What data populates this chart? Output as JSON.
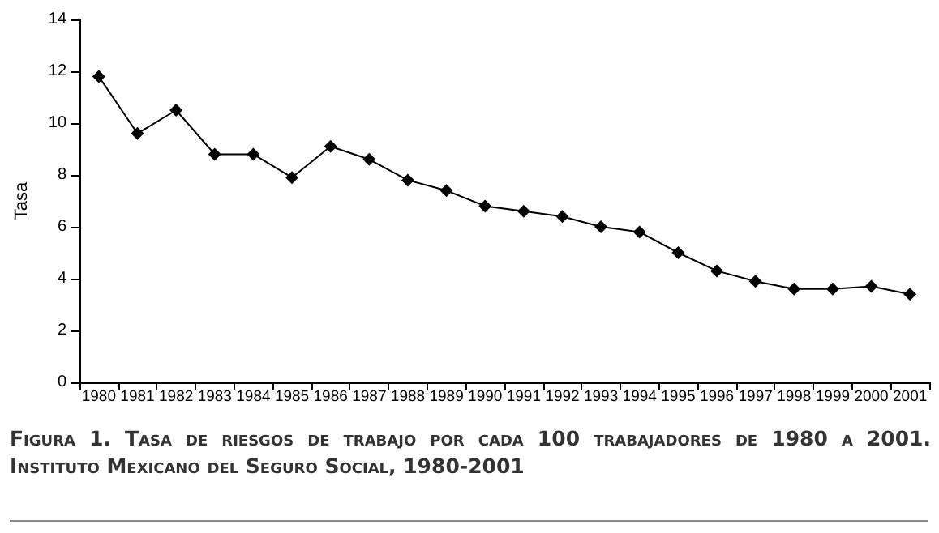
{
  "chart_data": {
    "type": "line",
    "title": "Figura 1. Tasa de riesgos de trabajo por cada 100 trabajadores de 1980 a 2001. Instituto Mexicano del Seguro Social, 1980-2001",
    "ylabel": "Tasa",
    "categories": [
      "1980",
      "1981",
      "1982",
      "1983",
      "1984",
      "1985",
      "1986",
      "1987",
      "1988",
      "1989",
      "1990",
      "1991",
      "1992",
      "1993",
      "1994",
      "1995",
      "1996",
      "1997",
      "1998",
      "1999",
      "2000",
      "2001"
    ],
    "series": [
      {
        "color": "#000000",
        "values": [
          11.8,
          9.6,
          10.5,
          8.8,
          8.8,
          7.9,
          9.1,
          8.6,
          7.8,
          7.4,
          6.8,
          6.6,
          6.4,
          6.0,
          5.8,
          5.0,
          4.3,
          3.9,
          3.6,
          3.6,
          3.7,
          3.4
        ]
      }
    ],
    "ylim": [
      0,
      14
    ],
    "yticks": [
      0,
      2,
      4,
      6,
      8,
      10,
      12,
      14
    ],
    "grid": false,
    "marker": "diamond",
    "line_style": "solid"
  }
}
